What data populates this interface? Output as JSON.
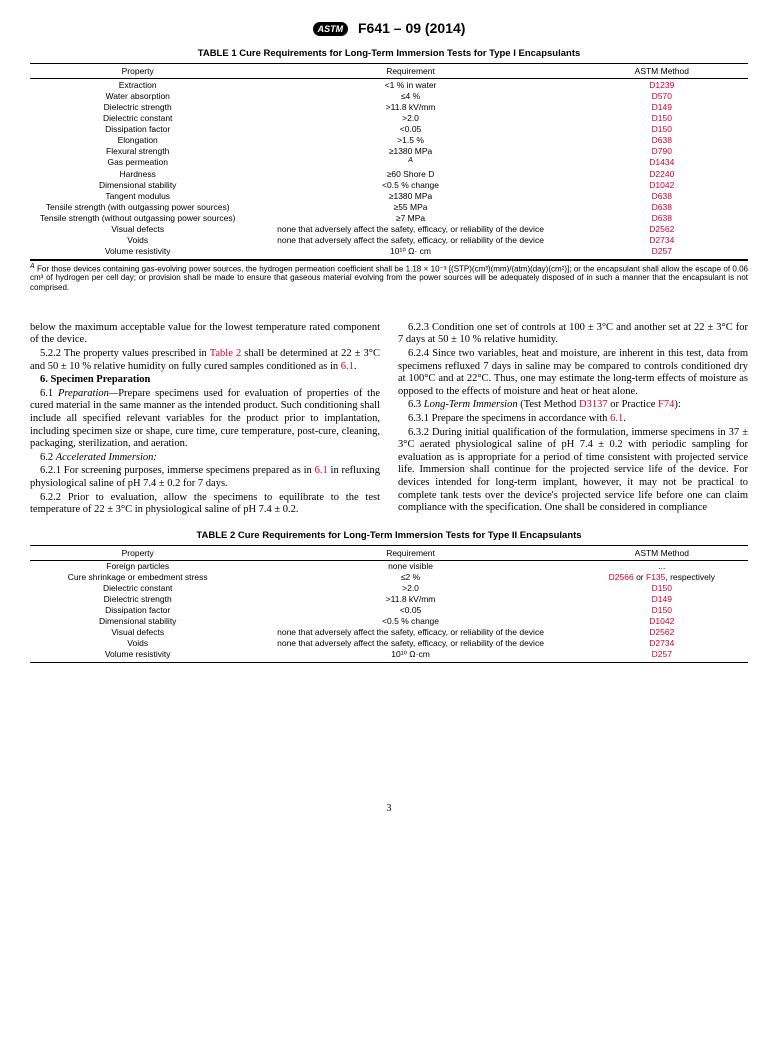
{
  "header": {
    "logo_text": "ASTM",
    "designation": "F641 – 09 (2014)"
  },
  "table1": {
    "title": "TABLE 1 Cure Requirements for Long-Term Immersion Tests for Type I Encapsulants",
    "headers": {
      "property": "Property",
      "requirement": "Requirement",
      "method": "ASTM Method"
    },
    "rows": [
      {
        "property": "Extraction",
        "requirement": "<1 % in water",
        "method": "D1239"
      },
      {
        "property": "Water absorption",
        "requirement": "≤4 %",
        "method": "D570"
      },
      {
        "property": "Dielectric strength",
        "requirement": ">11.8 kV/mm",
        "method": "D149"
      },
      {
        "property": "Dielectric constant",
        "requirement": ">2.0",
        "method": "D150"
      },
      {
        "property": "Dissipation factor",
        "requirement": "<0.05",
        "method": "D150"
      },
      {
        "property": "Elongation",
        "requirement": ">1.5 %",
        "method": "D638"
      },
      {
        "property": "Flexural strength",
        "requirement": "≥1380 MPa",
        "method": "D790"
      },
      {
        "property": "Gas permeation",
        "requirement": "A",
        "method": "D1434",
        "req_sup": true
      },
      {
        "property": "Hardness",
        "requirement": "≥60 Shore D",
        "method": "D2240"
      },
      {
        "property": "Dimensional stability",
        "requirement": "<0.5 % change",
        "method": "D1042"
      },
      {
        "property": "Tangent modulus",
        "requirement": "≥1380 MPa",
        "method": "D638"
      },
      {
        "property": "Tensile strength (with outgassing power sources)",
        "requirement": "≥55 MPa",
        "method": "D638"
      },
      {
        "property": "Tensile strength (without outgassing power sources)",
        "requirement": "≥7 MPa",
        "method": "D638"
      },
      {
        "property": "Visual defects",
        "requirement": "none that adversely affect the safety, efficacy, or reliability of the device",
        "method": "D2562"
      },
      {
        "property": "Voids",
        "requirement": "none that adversely affect the safety, efficacy, or reliability of the device",
        "method": "D2734"
      },
      {
        "property": "Volume resistivity",
        "requirement": "10¹⁰ Ω· cm",
        "method": "D257"
      }
    ],
    "footnote_label": "A",
    "footnote": " For those devices containing gas-evolving power sources, the hydrogen permeation coefficient shall be 1.18 × 10⁻³ [(STP)(cm³)(mm)/(atm)(day)(cm²)]; or the encapsulant shall allow the escape of 0.06 cm³ of hydrogen per cell day; or provision shall be made to ensure that gaseous material evolving from the power sources will be adequately disposed of in such a manner that the encapsulant is not comprised."
  },
  "body": {
    "left": {
      "p1": "below the maximum acceptable value for the lowest temperature rated component of the device.",
      "p2a": "5.2.2 The property values prescribed in ",
      "p2_link": "Table 2",
      "p2b": " shall be determined at 22 ± 3°C and 50 ± 10 % relative humidity on fully cured samples conditioned as in ",
      "p2_link2": "6.1",
      "p2c": ".",
      "h6": "6.  Specimen Preparation",
      "p61a": "6.1 ",
      "p61_i": "Preparation—",
      "p61b": "Prepare specimens used for evaluation of properties of the cured material in the same manner as the intended product. Such conditioning shall include all specified relevant variables for the product prior to implantation, including specimen size or shape, cure time, cure temperature, post-cure, cleaning, packaging, sterilization, and aeration.",
      "p62a": "6.2 ",
      "p62_i": "Accelerated Immersion:",
      "p621a": "6.2.1 For screening purposes, immerse specimens prepared as in ",
      "p621_link": "6.1",
      "p621b": " in refluxing physiological saline of pH 7.4 ± 0.2 for 7 days.",
      "p622": "6.2.2 Prior to evaluation, allow the specimens to equilibrate to the test temperature of 22 ± 3°C in physiological saline of pH 7.4 ± 0.2."
    },
    "right": {
      "p623": "6.2.3 Condition one set of controls at 100 ± 3°C and another set at 22 ± 3°C for 7 days at 50 ± 10 % relative humidity.",
      "p624": "6.2.4 Since two variables, heat and moisture, are inherent in this test, data from specimens refluxed 7 days in saline may be compared to controls conditioned dry at 100°C and at 22°C. Thus, one may estimate the long-term effects of moisture as opposed to the effects of moisture and heat or heat alone.",
      "p63a": "6.3 ",
      "p63_i": "Long-Term Immersion",
      "p63b": " (Test Method ",
      "p63_link1": "D3137",
      "p63c": " or Practice ",
      "p63_link2": "F74",
      "p63d": "):",
      "p631a": "6.3.1 Prepare the specimens in accordance with ",
      "p631_link": "6.1",
      "p631b": ".",
      "p632": "6.3.2 During initial qualification of the formulation, immerse specimens in 37 ± 3°C aerated physiological saline of pH 7.4 ± 0.2 with periodic sampling for evaluation as is appropriate for a period of time consistent with projected service life. Immersion shall continue for the projected service life of the device. For devices intended for long-term implant, however, it may not be practical to complete tank tests over the device's projected service life before one can claim compliance with the specification. One shall be considered in compliance"
    }
  },
  "table2": {
    "title": "TABLE 2 Cure Requirements for Long-Term Immersion Tests for Type II Encapsulants",
    "headers": {
      "property": "Property",
      "requirement": "Requirement",
      "method": "ASTM Method"
    },
    "rows": [
      {
        "property": "Foreign particles",
        "requirement": "none visible",
        "method": "...",
        "plain_method": true
      },
      {
        "property": "Cure shrinkage or embedment stress",
        "requirement": "≤2 %",
        "method_html": "<span class='astm-link'>D2566</span> or <span class='astm-link'>F135</span>, respectively"
      },
      {
        "property": "Dielectric constant",
        "requirement": ">2.0",
        "method": "D150"
      },
      {
        "property": "Dielectric strength",
        "requirement": ">11.8 kV/mm",
        "method": "D149"
      },
      {
        "property": "Dissipation factor",
        "requirement": "<0.05",
        "method": "D150"
      },
      {
        "property": "Dimensional stability",
        "requirement": "<0.5 % change",
        "method": "D1042"
      },
      {
        "property": "Visual defects",
        "requirement": "none that adversely affect the safety, efficacy, or reliability of the device",
        "method": "D2562"
      },
      {
        "property": "Voids",
        "requirement": "none that adversely affect the safety, efficacy, or reliability of the device",
        "method": "D2734"
      },
      {
        "property": "Volume resistivity",
        "requirement": "10¹⁰ Ω·cm",
        "method": "D257"
      }
    ]
  },
  "page_number": "3"
}
